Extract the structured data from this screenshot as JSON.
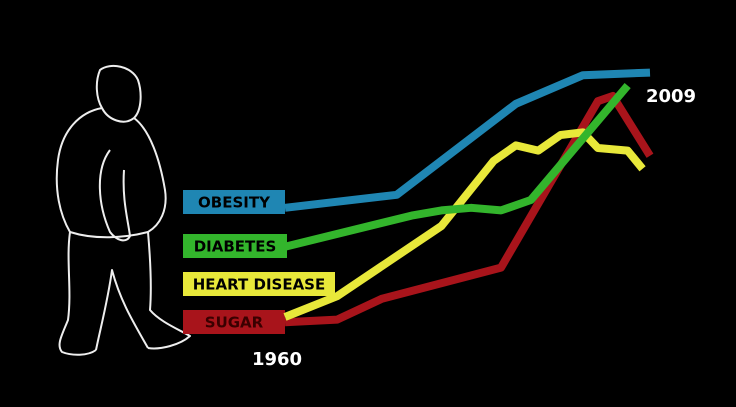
{
  "chart_data": {
    "type": "line",
    "xlim": [
      1960,
      2009
    ],
    "ylim": [
      0,
      100
    ],
    "x_start_label": 1960,
    "x_end_label": 2009,
    "series": [
      {
        "name": "OBESITY",
        "color": "#1f86b3",
        "x": [
          1960,
          1975,
          1991,
          2000,
          2009
        ],
        "values": [
          47,
          52,
          87,
          98,
          99
        ]
      },
      {
        "name": "DIABETES",
        "color": "#33b52c",
        "x": [
          1960,
          1977,
          1981,
          1985,
          1989,
          1993,
          2006
        ],
        "values": [
          32,
          44,
          46,
          47,
          46,
          50,
          94
        ]
      },
      {
        "name": "HEART DISEASE",
        "color": "#e8e83a",
        "x": [
          1960,
          1967,
          1981,
          1988,
          1991,
          1994,
          1997,
          2000,
          2002,
          2006,
          2008
        ],
        "values": [
          5,
          13,
          40,
          65,
          71,
          69,
          75,
          76,
          70,
          69,
          62
        ]
      },
      {
        "name": "SUGAR",
        "color": "#a8141b",
        "x": [
          1960,
          1967,
          1973,
          1989,
          2002,
          2004,
          2009
        ],
        "values": [
          3,
          4,
          12,
          24,
          88,
          90,
          67
        ]
      }
    ]
  }
}
